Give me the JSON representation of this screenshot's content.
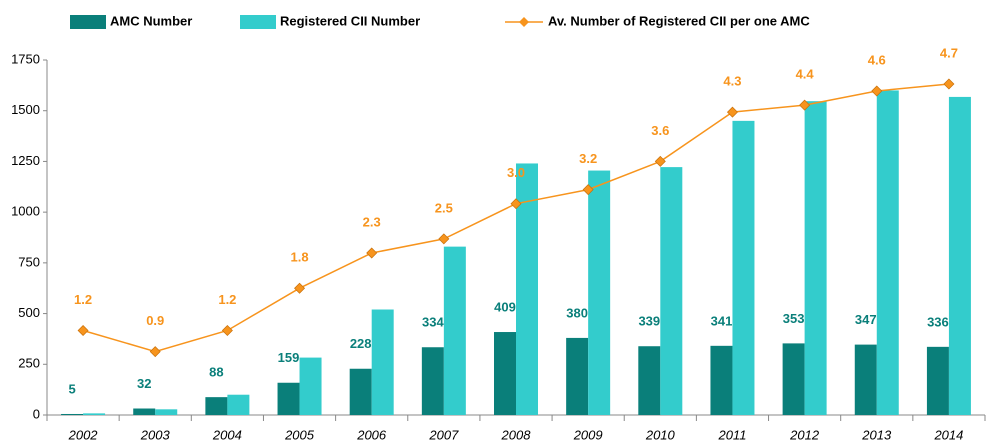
{
  "chart_data": {
    "type": "bar",
    "categories": [
      "2002",
      "2003",
      "2004",
      "2005",
      "2006",
      "2007",
      "2008",
      "2009",
      "2010",
      "2011",
      "2012",
      "2013",
      "2014"
    ],
    "series": [
      {
        "name": "AMC Number",
        "color": "#0a7f7a",
        "values": [
          5,
          32,
          88,
          159,
          228,
          334,
          409,
          380,
          339,
          341,
          353,
          347,
          336
        ]
      },
      {
        "name": "Registered CII Number",
        "color": "#33cccc",
        "values": [
          8,
          28,
          100,
          283,
          520,
          830,
          1240,
          1205,
          1222,
          1450,
          1547,
          1600,
          1568
        ]
      },
      {
        "name": "Av. Number of Registered CII per one AMC",
        "color": "#f7941d",
        "type": "line",
        "axis": "y2",
        "values": [
          1.2,
          0.9,
          1.2,
          1.8,
          2.3,
          2.5,
          3,
          3.2,
          3.6,
          4.3,
          4.4,
          4.6,
          4.7
        ],
        "value_labels": [
          "1.2",
          "0.9",
          "1.2",
          "1.8",
          "2.3",
          "2.5",
          "3.0",
          "3.2",
          "3.6",
          "4.3",
          "4.4",
          "4.6",
          "4.7"
        ]
      }
    ],
    "ylim": [
      0,
      1750
    ],
    "yticks": [
      0,
      250,
      500,
      750,
      1000,
      1250,
      1500,
      1750
    ],
    "y2lim": [
      0,
      5.04
    ],
    "grid": false,
    "legend": "top"
  }
}
